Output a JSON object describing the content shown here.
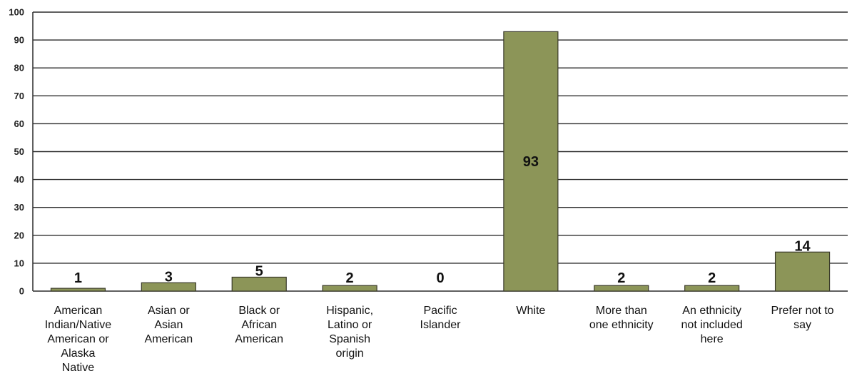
{
  "chart_data": {
    "type": "bar",
    "title": "",
    "xlabel": "",
    "ylabel": "",
    "ylim": [
      0,
      100
    ],
    "yticks": [
      "0",
      "10",
      "20",
      "30",
      "40",
      "50",
      "60",
      "70",
      "80",
      "90",
      "100"
    ],
    "grid": true,
    "legend": "none",
    "bar_color": "#8c9558",
    "categories": [
      "American Indian/Native American or Alaska Native",
      "Asian or Asian American",
      "Black or African American",
      "Hispanic, Latino or Spanish origin",
      "Pacific Islander",
      "White",
      "More than one ethnicity",
      "An ethnicity not included here",
      "Prefer not to say"
    ],
    "category_lines": [
      [
        "American",
        "Indian/Native",
        "American or",
        "Alaska",
        "Native"
      ],
      [
        "Asian or",
        "Asian",
        "American"
      ],
      [
        "Black or",
        "African",
        "American"
      ],
      [
        "Hispanic,",
        "Latino or",
        "Spanish",
        "origin"
      ],
      [
        "Pacific",
        "Islander"
      ],
      [
        "White"
      ],
      [
        "More than",
        "one ethnicity"
      ],
      [
        "An ethnicity",
        "not included",
        "here"
      ],
      [
        "Prefer not to",
        "say"
      ]
    ],
    "values": [
      1,
      3,
      5,
      2,
      0,
      93,
      2,
      2,
      14
    ],
    "data_labels": [
      "1",
      "3",
      "5",
      "2",
      "0",
      "93",
      "2",
      "2",
      "14"
    ]
  }
}
